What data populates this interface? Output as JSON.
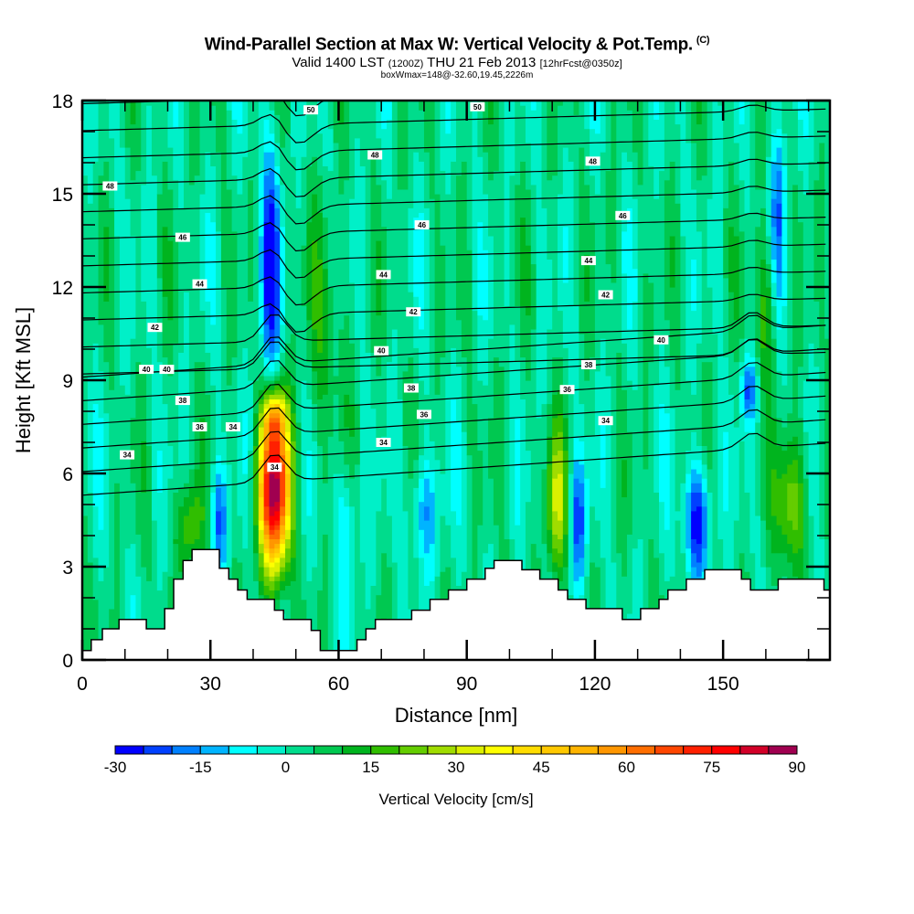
{
  "header": {
    "title": "Wind-Parallel Section at Max W: Vertical Velocity & Pot.Temp.",
    "copyright": "(C)",
    "valid_prefix": "Valid 1400 LST",
    "valid_utc": "(1200Z)",
    "valid_date": "THU 21 Feb 2013",
    "forecast": "[12hrFcst@0350z]",
    "box_info": "boxWmax=148@-32.60,19.45,2226m"
  },
  "chart_data": {
    "type": "heatmap",
    "title": "Wind-Parallel Section at Max W: Vertical Velocity & Pot.Temp.",
    "xlabel": "Distance [nm]",
    "ylabel": "Height [Kft MSL]",
    "xlim": [
      0,
      175
    ],
    "ylim": [
      0,
      18
    ],
    "xticks": [
      "0",
      "30",
      "60",
      "90",
      "120",
      "150"
    ],
    "xtick_values": [
      0,
      30,
      60,
      90,
      120,
      150
    ],
    "yticks": [
      "0",
      "3",
      "6",
      "9",
      "12",
      "15",
      "18"
    ],
    "ytick_values": [
      0,
      3,
      6,
      9,
      12,
      15,
      18
    ],
    "colorbar": {
      "title": "Vertical Velocity [cm/s]",
      "min": -30,
      "max": 90,
      "step": 5,
      "tick_labels": [
        "-30",
        "-15",
        "0",
        "15",
        "30",
        "45",
        "60",
        "75",
        "90"
      ],
      "tick_values": [
        -30,
        -15,
        0,
        15,
        30,
        45,
        60,
        75,
        90
      ],
      "colors": [
        "#0000ff",
        "#0040ff",
        "#0080ff",
        "#00b4ff",
        "#00ffff",
        "#00f0c8",
        "#00dc8c",
        "#00c850",
        "#00b41e",
        "#30be00",
        "#64cd00",
        "#a0dc00",
        "#dcf000",
        "#ffff00",
        "#ffdc00",
        "#ffc800",
        "#ffb400",
        "#ff9600",
        "#ff6e00",
        "#ff4600",
        "#ff2000",
        "#ff0000",
        "#d20028",
        "#a00050"
      ]
    },
    "features": [
      {
        "name": "updraft-core",
        "x": 45,
        "y": 5.5,
        "x_width": 3.5,
        "y_width": 2.6,
        "value": 90
      },
      {
        "name": "updraft-upper",
        "x": 45,
        "y": 7.8,
        "x_width": 2.5,
        "y_width": 0.8,
        "value": 30
      },
      {
        "name": "downdraft-upper",
        "x": 44,
        "y": 12.5,
        "x_width": 2.5,
        "y_width": 4.0,
        "value": -25
      },
      {
        "name": "downdraft-lee",
        "x": 32,
        "y": 4.5,
        "x_width": 2.0,
        "y_width": 1.8,
        "value": -18
      },
      {
        "name": "updraft-lee-slope",
        "x": 25,
        "y": 4.3,
        "x_width": 3.0,
        "y_width": 1.5,
        "value": 22
      },
      {
        "name": "updraft-mid-upper",
        "x": 57,
        "y": 10.5,
        "x_width": 5.0,
        "y_width": 4.0,
        "value": 12
      },
      {
        "name": "downdraft-62",
        "x": 62,
        "y": 4.5,
        "x_width": 3.0,
        "y_width": 2.0,
        "value": -10
      },
      {
        "name": "downdraft-80",
        "x": 80,
        "y": 4.8,
        "x_width": 3.5,
        "y_width": 1.8,
        "value": -14
      },
      {
        "name": "updraft-110",
        "x": 111,
        "y": 5.0,
        "x_width": 2.5,
        "y_width": 2.4,
        "value": 28
      },
      {
        "name": "downdraft-117",
        "x": 116,
        "y": 4.5,
        "x_width": 2.0,
        "y_width": 2.0,
        "value": -20
      },
      {
        "name": "downdraft-145",
        "x": 144,
        "y": 4.5,
        "x_width": 3.0,
        "y_width": 1.8,
        "value": -28
      },
      {
        "name": "updraft-165",
        "x": 166,
        "y": 5.0,
        "x_width": 3.5,
        "y_width": 2.2,
        "value": 26
      },
      {
        "name": "updraft-158-upper",
        "x": 160,
        "y": 11.2,
        "x_width": 2.5,
        "y_width": 2.5,
        "value": 18
      },
      {
        "name": "downdraft-156-upper",
        "x": 156,
        "y": 8.7,
        "x_width": 2.0,
        "y_width": 1.0,
        "value": -18
      },
      {
        "name": "downdraft-163-top",
        "x": 163,
        "y": 14.5,
        "x_width": 2.0,
        "y_width": 3.0,
        "value": -14
      }
    ],
    "terrain": {
      "x": [
        0,
        2.1,
        4.7,
        8.6,
        15.0,
        19.3,
        21.4,
        23.6,
        25.7,
        32.1,
        34.3,
        36.4,
        38.6,
        42.9,
        45.0,
        47.1,
        53.6,
        55.7,
        57.9,
        64.3,
        66.4,
        68.6,
        77.1,
        81.4,
        85.7,
        90.0,
        94.3,
        96.4,
        102.9,
        107.1,
        111.4,
        113.6,
        117.9,
        126.4,
        130.7,
        135.0,
        137.1,
        141.4,
        145.7,
        154.3,
        156.4,
        162.9,
        173.6,
        175.3
      ],
      "height": [
        0.3,
        0.65,
        1.0,
        1.3,
        1.0,
        1.65,
        2.6,
        3.2,
        3.55,
        2.95,
        2.6,
        2.25,
        1.95,
        1.95,
        1.6,
        1.3,
        0.95,
        0.3,
        0.3,
        0.65,
        1.0,
        1.3,
        1.6,
        1.95,
        2.25,
        2.6,
        2.95,
        3.2,
        2.9,
        2.6,
        2.25,
        1.95,
        1.65,
        1.3,
        1.65,
        1.95,
        2.25,
        2.6,
        2.9,
        2.6,
        2.25,
        2.6,
        2.25,
        2.25
      ]
    },
    "isentropes": {
      "label_values": [
        "50",
        "50",
        "48",
        "48",
        "48",
        "46",
        "46",
        "46",
        "44",
        "44",
        "44",
        "42",
        "42",
        "42",
        "40",
        "40",
        "40",
        "40",
        "38",
        "38",
        "38",
        "36",
        "36",
        "36",
        "34",
        "34",
        "34",
        "34",
        "34"
      ],
      "labels": [
        {
          "text": "50",
          "x": 53.5,
          "y": 17.7
        },
        {
          "text": "50",
          "x": 92.5,
          "y": 17.8
        },
        {
          "text": "48",
          "x": 6.5,
          "y": 15.25
        },
        {
          "text": "48",
          "x": 68.5,
          "y": 16.25
        },
        {
          "text": "48",
          "x": 119.5,
          "y": 16.05
        },
        {
          "text": "46",
          "x": 23.5,
          "y": 13.6
        },
        {
          "text": "46",
          "x": 79.5,
          "y": 14.0
        },
        {
          "text": "46",
          "x": 126.5,
          "y": 14.3
        },
        {
          "text": "44",
          "x": 27.5,
          "y": 12.1
        },
        {
          "text": "44",
          "x": 70.5,
          "y": 12.4
        },
        {
          "text": "44",
          "x": 118.5,
          "y": 12.85
        },
        {
          "text": "42",
          "x": 17.0,
          "y": 10.7
        },
        {
          "text": "42",
          "x": 77.5,
          "y": 11.2
        },
        {
          "text": "42",
          "x": 122.5,
          "y": 11.75
        },
        {
          "text": "40",
          "x": 15.0,
          "y": 9.35
        },
        {
          "text": "40",
          "x": 70.0,
          "y": 9.95
        },
        {
          "text": "40",
          "x": 135.5,
          "y": 10.3
        },
        {
          "text": "40",
          "x": 15.5,
          "y": 9.35
        },
        {
          "text": "38",
          "x": 23.5,
          "y": 8.35
        },
        {
          "text": "38",
          "x": 77.0,
          "y": 8.75
        },
        {
          "text": "38",
          "x": 118.5,
          "y": 9.5
        },
        {
          "text": "36",
          "x": 27.5,
          "y": 7.5
        },
        {
          "text": "36",
          "x": 80.0,
          "y": 7.9
        },
        {
          "text": "36",
          "x": 113.5,
          "y": 8.7
        },
        {
          "text": "34",
          "x": 10.5,
          "y": 6.6
        },
        {
          "text": "34",
          "x": 70.5,
          "y": 7.0
        },
        {
          "text": "34",
          "x": 122.5,
          "y": 7.7
        },
        {
          "text": "34",
          "x": 45.0,
          "y": 6.2
        },
        {
          "text": "34",
          "x": 31.0,
          "y": 7.5
        }
      ],
      "levels": [
        34,
        35,
        36,
        37,
        38,
        39,
        40,
        41,
        42,
        43,
        44,
        45,
        46,
        47,
        48,
        49,
        50
      ]
    }
  }
}
